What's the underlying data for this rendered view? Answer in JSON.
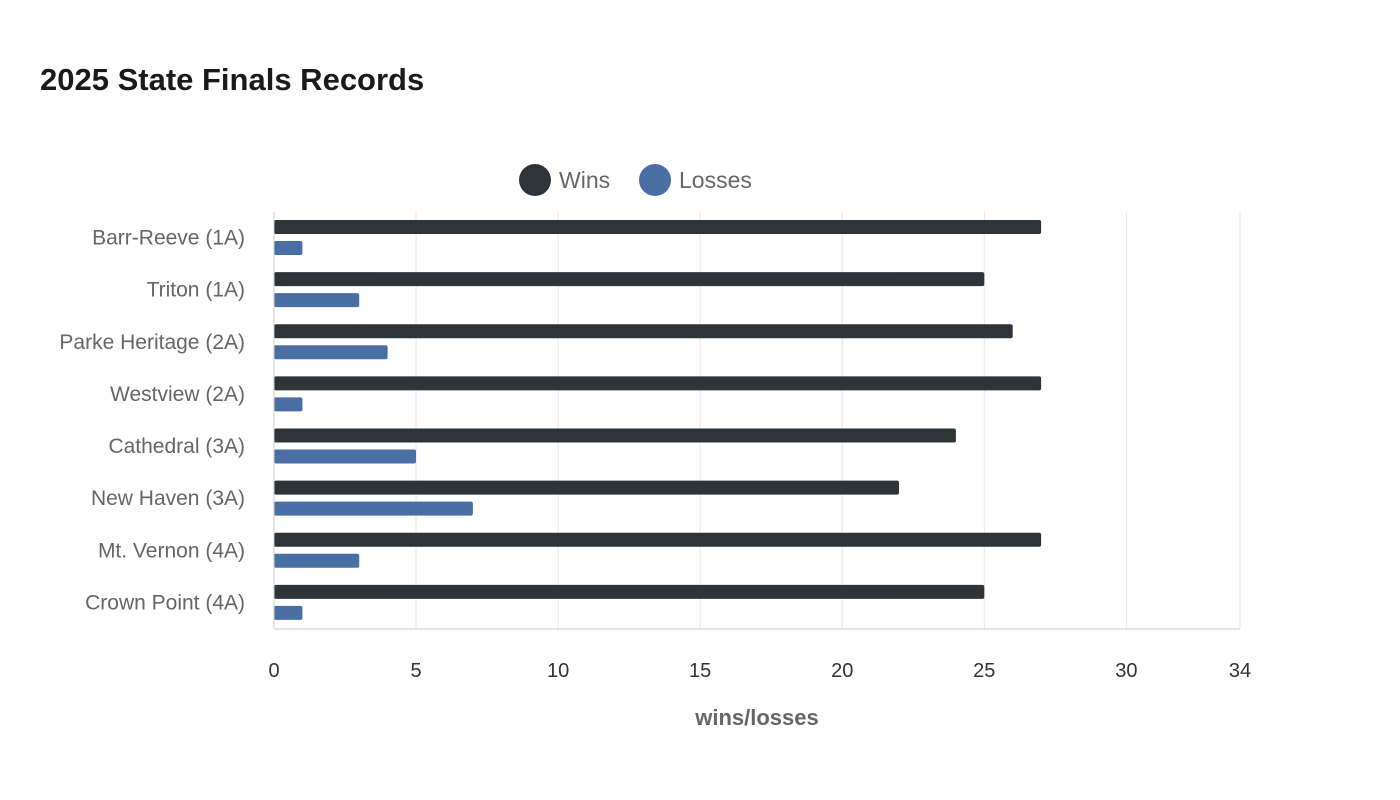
{
  "chart_data": {
    "type": "bar",
    "orientation": "horizontal",
    "title": "2025 State Finals Records",
    "xlabel": "wins/losses",
    "ylabel": "",
    "xlim": [
      0,
      34
    ],
    "xticks": [
      0,
      5,
      10,
      15,
      20,
      25,
      30,
      34
    ],
    "grid": true,
    "legend_position": "top-center",
    "categories": [
      "Barr-Reeve (1A)",
      "Triton (1A)",
      "Parke Heritage (2A)",
      "Westview (2A)",
      "Cathedral (3A)",
      "New Haven (3A)",
      "Mt. Vernon (4A)",
      "Crown Point (4A)"
    ],
    "series": [
      {
        "name": "Wins",
        "color": "#2e3538",
        "values": [
          27,
          25,
          26,
          27,
          24,
          22,
          27,
          25
        ]
      },
      {
        "name": "Losses",
        "color": "#4a6fa5",
        "values": [
          1,
          3,
          4,
          1,
          5,
          7,
          3,
          1
        ]
      }
    ]
  }
}
